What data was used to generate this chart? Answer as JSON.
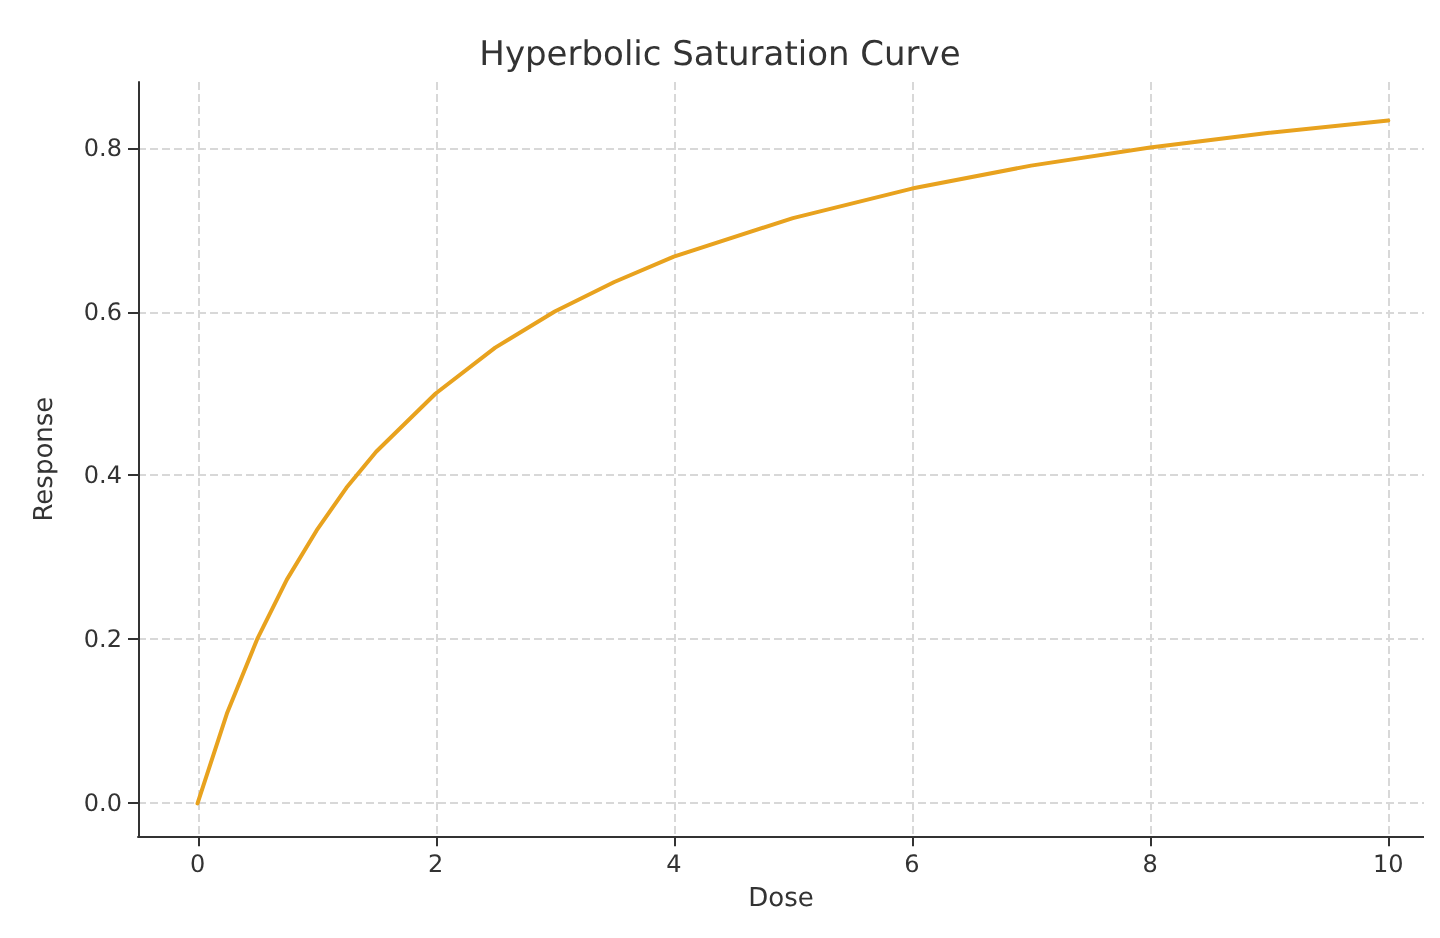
{
  "chart_data": {
    "type": "line",
    "title": "Hyperbolic Saturation Curve",
    "xlabel": "Dose",
    "ylabel": "Response",
    "x": [
      0,
      0.25,
      0.5,
      0.75,
      1,
      1.25,
      1.5,
      2,
      2.5,
      3,
      3.5,
      4,
      5,
      6,
      7,
      8,
      9,
      10
    ],
    "series": [
      {
        "color": "#e8a21e",
        "values": [
          0,
          0.111,
          0.2,
          0.273,
          0.333,
          0.385,
          0.429,
          0.5,
          0.556,
          0.6,
          0.636,
          0.667,
          0.714,
          0.75,
          0.778,
          0.8,
          0.818,
          0.833
        ]
      }
    ],
    "xlim": [
      -0.5,
      10.3
    ],
    "ylim": [
      -0.04,
      0.88
    ],
    "xticks": [
      0,
      2,
      4,
      6,
      8,
      10
    ],
    "yticks": [
      {
        "value": 0,
        "label": "0.0"
      },
      {
        "value": 0.2,
        "label": "0.2"
      },
      {
        "value": 0.4,
        "label": "0.4"
      },
      {
        "value": 0.6,
        "label": "0.6"
      },
      {
        "value": 0.8,
        "label": "0.8"
      }
    ],
    "grid": true,
    "marker": "none",
    "line_style": "solid"
  }
}
